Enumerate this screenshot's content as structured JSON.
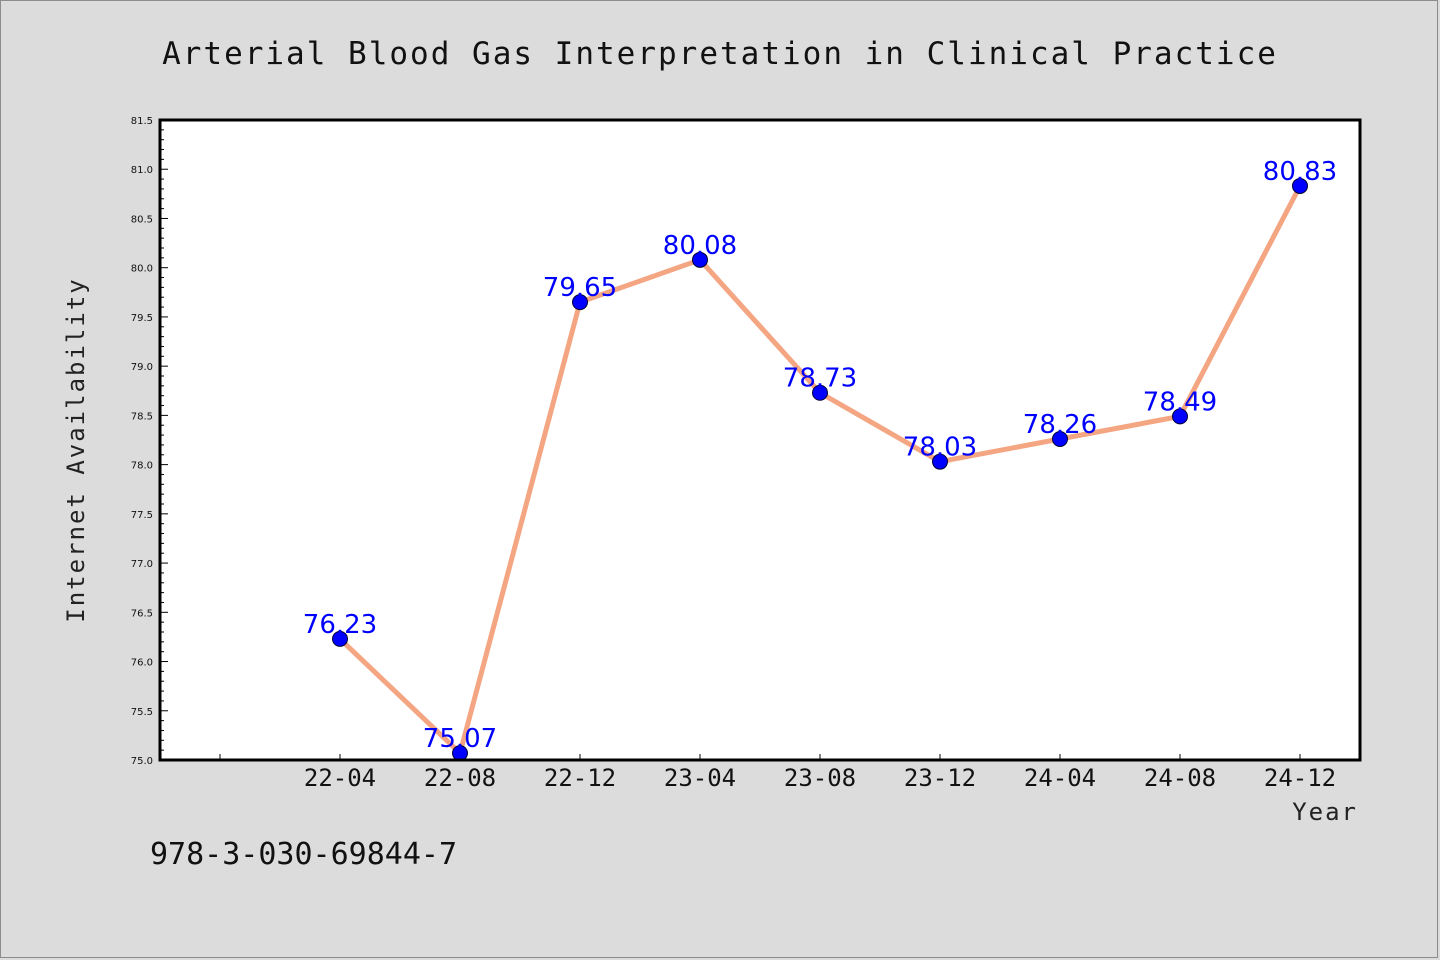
{
  "chart_data": {
    "type": "line",
    "title": "Arterial Blood Gas Interpretation in Clinical Practice",
    "xlabel": "Year",
    "ylabel": "Internet Availability",
    "categories": [
      "22-04",
      "22-08",
      "22-12",
      "23-04",
      "23-08",
      "23-12",
      "24-04",
      "24-08",
      "24-12"
    ],
    "series": [
      {
        "values": [
          76.23,
          75.07,
          79.65,
          80.08,
          78.73,
          78.03,
          78.26,
          78.49,
          80.83
        ]
      }
    ],
    "data_labels": [
      "76.23",
      "75.07",
      "79.65",
      "80.08",
      "78.73",
      "78.03",
      "78.26",
      "78.49",
      "80.83"
    ],
    "yticks": [
      "75.0",
      "75.5",
      "76.0",
      "76.5",
      "77.0",
      "77.5",
      "78.0",
      "78.5",
      "79.0",
      "79.5",
      "80.0",
      "80.5",
      "81.0",
      "81.5"
    ],
    "ylim": [
      75.0,
      81.5
    ],
    "grid": false,
    "line_color": "#f4a582",
    "marker_color": "#0000ff",
    "label_color": "#0000ff",
    "plot_background": "#ffffff",
    "page_background": "#dcdcdc"
  },
  "footer_text": "978-3-030-69844-7"
}
